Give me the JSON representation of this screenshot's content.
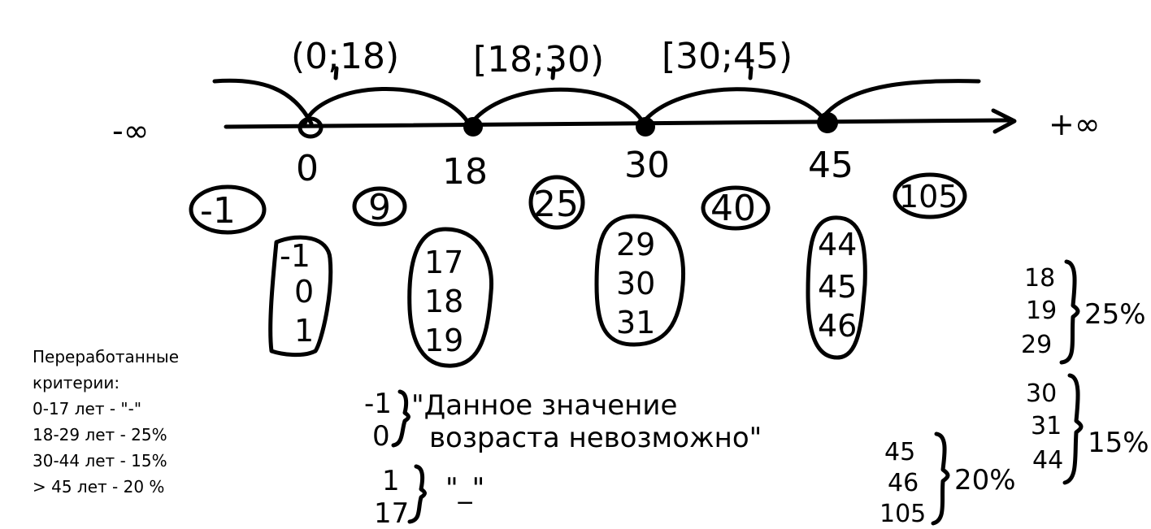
{
  "interval_labels": [
    "(0;18)",
    "[18;30)",
    "[30;45)"
  ],
  "infinity": {
    "minus": "-∞",
    "plus": "+∞"
  },
  "axis_points": [
    "0",
    "18",
    "30",
    "45"
  ],
  "representative_values": [
    "-1",
    "9",
    "25",
    "40",
    "105"
  ],
  "boundary_groups": [
    [
      "-1",
      "0",
      "1"
    ],
    [
      "17",
      "18",
      "19"
    ],
    [
      "29",
      "30",
      "31"
    ],
    [
      "44",
      "45",
      "46"
    ]
  ],
  "notes": {
    "invalid": {
      "values": [
        "-1",
        "0"
      ],
      "text_line1": "\"Данное значение",
      "text_line2": "возраста невозможно\""
    },
    "dash": {
      "values": [
        "1",
        "17"
      ],
      "text": "\"_\""
    },
    "group_20": {
      "values": [
        "45",
        "46",
        "105"
      ],
      "label": "20%"
    },
    "group_25": {
      "values": [
        "18",
        "19",
        "29"
      ],
      "label": "25%"
    },
    "group_15": {
      "values": [
        "30",
        "31",
        "44"
      ],
      "label": "15%"
    }
  },
  "criteria": {
    "title_line1": "Переработанные",
    "title_line2": "критерии:",
    "rules": [
      "0-17 лет - \"-\"",
      "18-29 лет - 25%",
      "30-44 лет - 15%",
      "> 45 лет - 20 %"
    ]
  }
}
